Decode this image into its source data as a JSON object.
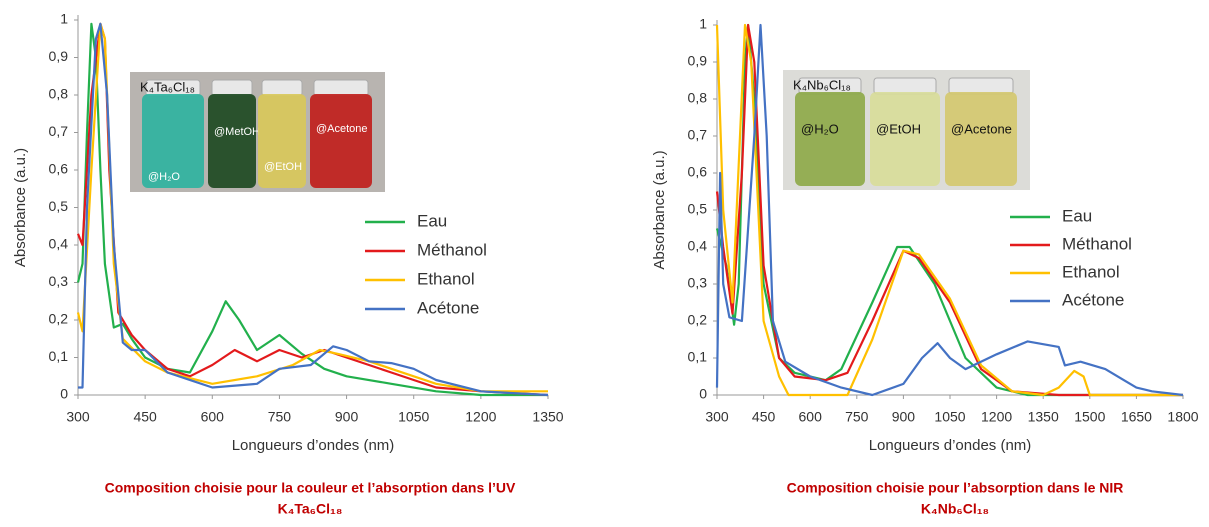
{
  "chart_data": [
    {
      "type": "line",
      "xlabel": "Longueurs d’ondes (nm)",
      "ylabel": "Absorbance (a.u.)",
      "caption": "Composition choisie pour la couleur et l’absorption dans l’UV",
      "formula": "K₄Ta₆Cl₁₈",
      "photo": {
        "title": "K₄Ta₆Cl₁₈",
        "labels": [
          "@H₂O",
          "@MetOH",
          "@EtOH",
          "@Acetone"
        ]
      },
      "xlim": [
        300,
        1350
      ],
      "xticks": [
        300,
        450,
        600,
        750,
        900,
        1050,
        1200,
        1350
      ],
      "ylim": [
        0,
        1
      ],
      "yticks": [
        0,
        {
          "value": 0.1,
          "label": "0,1"
        },
        {
          "value": 0.2,
          "label": "0,2"
        },
        {
          "value": 0.3,
          "label": "0,3"
        },
        {
          "value": 0.4,
          "label": "0,4"
        },
        {
          "value": 0.5,
          "label": "0,5"
        },
        {
          "value": 0.6,
          "label": "0,6"
        },
        {
          "value": 0.7,
          "label": "0,7"
        },
        {
          "value": 0.8,
          "label": "0,8"
        },
        {
          "value": 0.9,
          "label": "0,9"
        },
        1
      ],
      "series": [
        {
          "name": "Eau",
          "color": "#22b04c",
          "x": [
            300,
            310,
            320,
            330,
            340,
            350,
            360,
            380,
            400,
            420,
            450,
            500,
            550,
            600,
            630,
            660,
            700,
            750,
            800,
            850,
            900,
            1000,
            1100,
            1200,
            1350
          ],
          "values": [
            0.3,
            0.35,
            0.7,
            0.99,
            0.9,
            0.6,
            0.35,
            0.18,
            0.19,
            0.15,
            0.1,
            0.07,
            0.06,
            0.17,
            0.25,
            0.2,
            0.12,
            0.16,
            0.11,
            0.07,
            0.05,
            0.03,
            0.01,
            0.0,
            0.0
          ]
        },
        {
          "name": "Méthanol",
          "color": "#e31a1c",
          "x": [
            300,
            310,
            330,
            350,
            360,
            370,
            390,
            420,
            450,
            500,
            550,
            600,
            650,
            700,
            750,
            800,
            850,
            900,
            950,
            1000,
            1050,
            1100,
            1200,
            1350
          ],
          "values": [
            0.43,
            0.4,
            0.8,
            0.99,
            0.95,
            0.6,
            0.22,
            0.16,
            0.12,
            0.07,
            0.05,
            0.08,
            0.12,
            0.09,
            0.12,
            0.1,
            0.12,
            0.1,
            0.08,
            0.06,
            0.04,
            0.02,
            0.01,
            0.0
          ]
        },
        {
          "name": "Ethanol",
          "color": "#ffc000",
          "x": [
            300,
            310,
            330,
            350,
            360,
            380,
            400,
            450,
            500,
            600,
            700,
            780,
            840,
            880,
            950,
            1000,
            1100,
            1200,
            1350
          ],
          "values": [
            0.22,
            0.17,
            0.6,
            0.99,
            0.95,
            0.35,
            0.15,
            0.09,
            0.06,
            0.03,
            0.05,
            0.08,
            0.12,
            0.11,
            0.09,
            0.07,
            0.03,
            0.01,
            0.01
          ]
        },
        {
          "name": "Acétone",
          "color": "#4472c4",
          "x": [
            300,
            310,
            320,
            340,
            350,
            365,
            380,
            400,
            420,
            450,
            500,
            600,
            700,
            750,
            820,
            870,
            900,
            950,
            1000,
            1050,
            1100,
            1200,
            1350
          ],
          "values": [
            0.02,
            0.02,
            0.5,
            0.95,
            0.99,
            0.8,
            0.4,
            0.14,
            0.12,
            0.12,
            0.06,
            0.02,
            0.03,
            0.07,
            0.08,
            0.13,
            0.12,
            0.09,
            0.085,
            0.07,
            0.04,
            0.01,
            0.0
          ]
        }
      ]
    },
    {
      "type": "line",
      "xlabel": "Longueurs d’ondes (nm)",
      "ylabel": "Absorbance (a.u.)",
      "caption": "Composition choisie pour l’absorption dans le NIR",
      "formula": "K₄Nb₆Cl₁₈",
      "photo": {
        "title": "K₄Nb₆Cl₁₈",
        "labels": [
          "@H₂O",
          "@EtOH",
          "@Acetone"
        ]
      },
      "xlim": [
        300,
        1800
      ],
      "xticks": [
        300,
        450,
        600,
        750,
        900,
        1050,
        1200,
        1350,
        1500,
        1650,
        1800
      ],
      "ylim": [
        0,
        1
      ],
      "yticks": [
        0,
        {
          "value": 0.1,
          "label": "0,1"
        },
        {
          "value": 0.2,
          "label": "0,2"
        },
        {
          "value": 0.3,
          "label": "0,3"
        },
        {
          "value": 0.4,
          "label": "0,4"
        },
        {
          "value": 0.5,
          "label": "0,5"
        },
        {
          "value": 0.6,
          "label": "0,6"
        },
        {
          "value": 0.7,
          "label": "0,7"
        },
        {
          "value": 0.8,
          "label": "0,8"
        },
        {
          "value": 0.9,
          "label": "0,9"
        },
        1
      ],
      "series": [
        {
          "name": "Eau",
          "color": "#22b04c",
          "x": [
            300,
            330,
            355,
            370,
            390,
            400,
            420,
            450,
            500,
            550,
            650,
            700,
            800,
            880,
            920,
            1000,
            1100,
            1200,
            1300,
            1800
          ],
          "values": [
            0.45,
            0.35,
            0.19,
            0.3,
            0.9,
            1.0,
            0.8,
            0.3,
            0.1,
            0.06,
            0.04,
            0.07,
            0.25,
            0.4,
            0.4,
            0.3,
            0.1,
            0.02,
            0.0,
            0.0
          ]
        },
        {
          "name": "Méthanol",
          "color": "#e31a1c",
          "x": [
            300,
            320,
            350,
            380,
            400,
            420,
            450,
            500,
            550,
            650,
            720,
            800,
            900,
            950,
            1050,
            1150,
            1250,
            1400,
            1800
          ],
          "values": [
            0.55,
            0.4,
            0.22,
            0.6,
            1.0,
            0.9,
            0.35,
            0.1,
            0.05,
            0.04,
            0.06,
            0.2,
            0.39,
            0.37,
            0.25,
            0.07,
            0.01,
            0.0,
            0.0
          ]
        },
        {
          "name": "Ethanol",
          "color": "#ffc000",
          "x": [
            300,
            320,
            350,
            390,
            410,
            450,
            500,
            530,
            720,
            800,
            900,
            950,
            1050,
            1150,
            1250,
            1350,
            1400,
            1450,
            1480,
            1500,
            1800
          ],
          "values": [
            1.0,
            0.5,
            0.25,
            1.0,
            0.9,
            0.2,
            0.05,
            0.0,
            0.0,
            0.15,
            0.39,
            0.38,
            0.26,
            0.08,
            0.01,
            0.0,
            0.02,
            0.065,
            0.05,
            0.0,
            0.0
          ]
        },
        {
          "name": "Acétone",
          "color": "#4472c4",
          "x": [
            300,
            310,
            320,
            340,
            380,
            420,
            440,
            460,
            480,
            520,
            600,
            700,
            800,
            900,
            960,
            1010,
            1050,
            1100,
            1200,
            1300,
            1400,
            1420,
            1470,
            1550,
            1650,
            1700,
            1800
          ],
          "values": [
            0.02,
            0.6,
            0.3,
            0.21,
            0.2,
            0.7,
            1.0,
            0.7,
            0.2,
            0.09,
            0.05,
            0.02,
            0.0,
            0.03,
            0.1,
            0.14,
            0.1,
            0.07,
            0.11,
            0.145,
            0.13,
            0.08,
            0.09,
            0.07,
            0.02,
            0.01,
            0.0
          ]
        }
      ]
    }
  ]
}
